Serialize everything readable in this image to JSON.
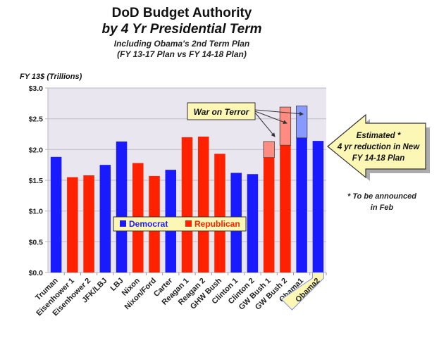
{
  "chart_data": {
    "type": "bar",
    "title": "DoD Budget Authority",
    "title_line2": "by 4 Yr Presidential Term",
    "subtitle": "Including Obama's 2nd Term Plan",
    "subtitle_line2": "(FY 13-17 Plan vs FY 14-18 Plan)",
    "ylabel": "FY 13$ (Trillions)",
    "ylim": [
      0,
      3.0
    ],
    "yticks": [
      "$0.0",
      "$0.5",
      "$1.0",
      "$1.5",
      "$2.0",
      "$2.5",
      "$3.0"
    ],
    "grid": true,
    "legend_placement": "center",
    "legend": [
      {
        "name": "Democrat",
        "color": "#1a1aff"
      },
      {
        "name": "Republican",
        "color": "#ff2200"
      }
    ],
    "categories": [
      "Truman",
      "Eisenhower 1",
      "Eisenhower 2",
      "JFK/LBJ",
      "LBJ",
      "Nixon",
      "Nixon/Ford",
      "Carter",
      "Reagan 1",
      "Reagan 2",
      "GHW Bush",
      "Clinton 1",
      "Clinton 2",
      "GW Bush 1",
      "GW Bush 2",
      "Obama1",
      "Obama2"
    ],
    "party": [
      "D",
      "R",
      "R",
      "D",
      "D",
      "R",
      "R",
      "D",
      "R",
      "R",
      "R",
      "D",
      "D",
      "R",
      "R",
      "D",
      "D"
    ],
    "values": [
      1.88,
      1.55,
      1.58,
      1.75,
      2.13,
      1.78,
      1.57,
      1.67,
      2.2,
      2.21,
      1.93,
      1.62,
      1.6,
      1.87,
      2.07,
      2.19,
      2.14
    ],
    "war_on_terror_addition": [
      0,
      0,
      0,
      0,
      0,
      0,
      0,
      0,
      0,
      0,
      0,
      0,
      0,
      0.26,
      0.62,
      0.52,
      0
    ],
    "highlighted_category": "Obama2",
    "annotations": {
      "war_on_terror": "War on Terror",
      "arrow_line1": "Estimated *",
      "arrow_line2": "4 yr reduction in New",
      "arrow_line3": "FY 14-18 Plan",
      "footnote_line1": "* To be announced",
      "footnote_line2": "in Feb"
    },
    "colors": {
      "democrat": "#1a1aff",
      "republican": "#ff2200",
      "war_dem": "#8899ff",
      "war_rep": "#ff8c80",
      "plot_bg": "#e9e6f0",
      "callout_bg": "#fdf7b6"
    }
  }
}
